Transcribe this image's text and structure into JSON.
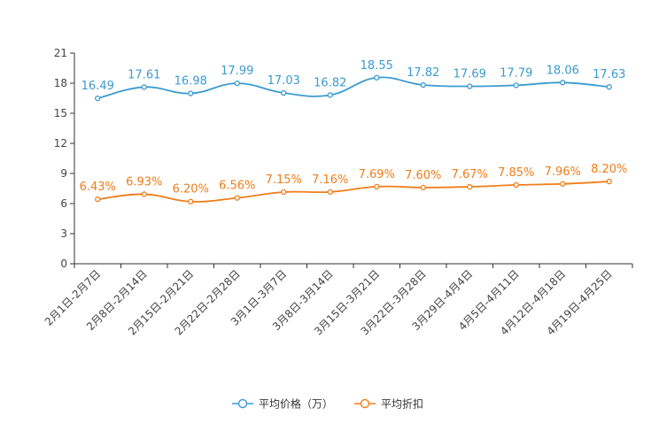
{
  "chart_data": {
    "type": "line",
    "title": "",
    "xlabel": "",
    "ylabel": "",
    "ylim": [
      0,
      21
    ],
    "yticks": [
      0,
      3,
      6,
      9,
      12,
      15,
      18,
      21
    ],
    "grid": false,
    "legend_position": "bottom-center",
    "categories": [
      "2月1日-2月7日",
      "2月8日-2月14日",
      "2月15日-2月21日",
      "2月22日-2月28日",
      "3月1日-3月7日",
      "3月8日-3月14日",
      "3月15日-3月21日",
      "3月22日-3月28日",
      "3月29日-4月4日",
      "4月5日-4月11日",
      "4月12日-4月18日",
      "4月19日-4月25日"
    ],
    "series": [
      {
        "name": "平均价格（万）",
        "color": "#3a9bd0",
        "values": [
          16.49,
          17.61,
          16.98,
          17.99,
          17.03,
          16.82,
          18.55,
          17.82,
          17.69,
          17.79,
          18.06,
          17.63
        ],
        "labels": [
          "16.49",
          "17.61",
          "16.98",
          "17.99",
          "17.03",
          "16.82",
          "18.55",
          "17.82",
          "17.69",
          "17.79",
          "18.06",
          "17.63"
        ]
      },
      {
        "name": "平均折扣",
        "color": "#f07d1a",
        "values": [
          6.43,
          6.93,
          6.2,
          6.56,
          7.15,
          7.16,
          7.69,
          7.6,
          7.67,
          7.85,
          7.96,
          8.2
        ],
        "labels": [
          "6.43%",
          "6.93%",
          "6.20%",
          "6.56%",
          "7.15%",
          "7.16%",
          "7.69%",
          "7.60%",
          "7.67%",
          "7.85%",
          "7.96%",
          "8.20%"
        ]
      }
    ]
  }
}
